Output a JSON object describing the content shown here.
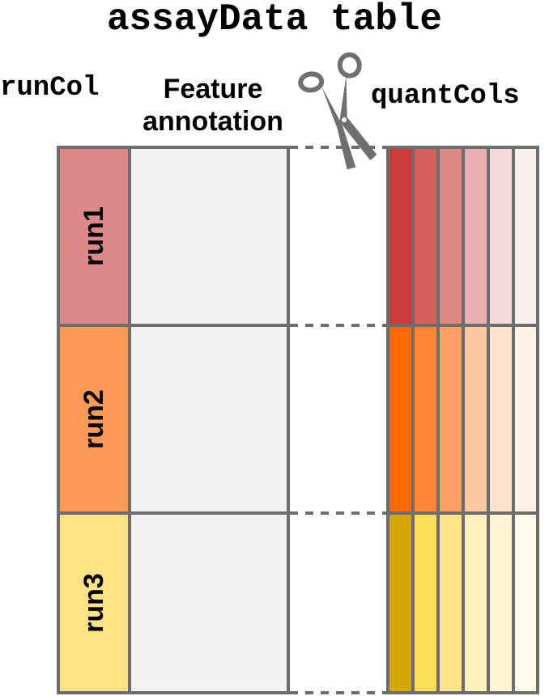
{
  "title": "assayData table",
  "labels": {
    "run_col": "runCol",
    "feature_line1": "Feature",
    "feature_line2": "annotation",
    "quant_cols": "quantCols"
  },
  "runs": [
    {
      "name": "run1",
      "color": "#dd8888",
      "quant_colors": [
        "#c93a3a",
        "#d45f5f",
        "#de8787",
        "#e8b0b0",
        "#f2d8d8",
        "#f9eeee"
      ]
    },
    {
      "name": "run2",
      "color": "#fd9a55",
      "quant_colors": [
        "#ff6a00",
        "#ff8433",
        "#ff9f66",
        "#ffc99f",
        "#ffe3cc",
        "#fff3e9"
      ]
    },
    {
      "name": "run3",
      "color": "#fde384",
      "quant_colors": [
        "#d4a800",
        "#fede55",
        "#fee488",
        "#fff0bd",
        "#fff5d4",
        "#fffaea"
      ]
    }
  ],
  "colors": {
    "border": "#6d6d6d",
    "feature_fill": "#f1f1f1",
    "scissors": "#6f6f6f"
  },
  "icons": {
    "scissors": "scissors-icon"
  }
}
